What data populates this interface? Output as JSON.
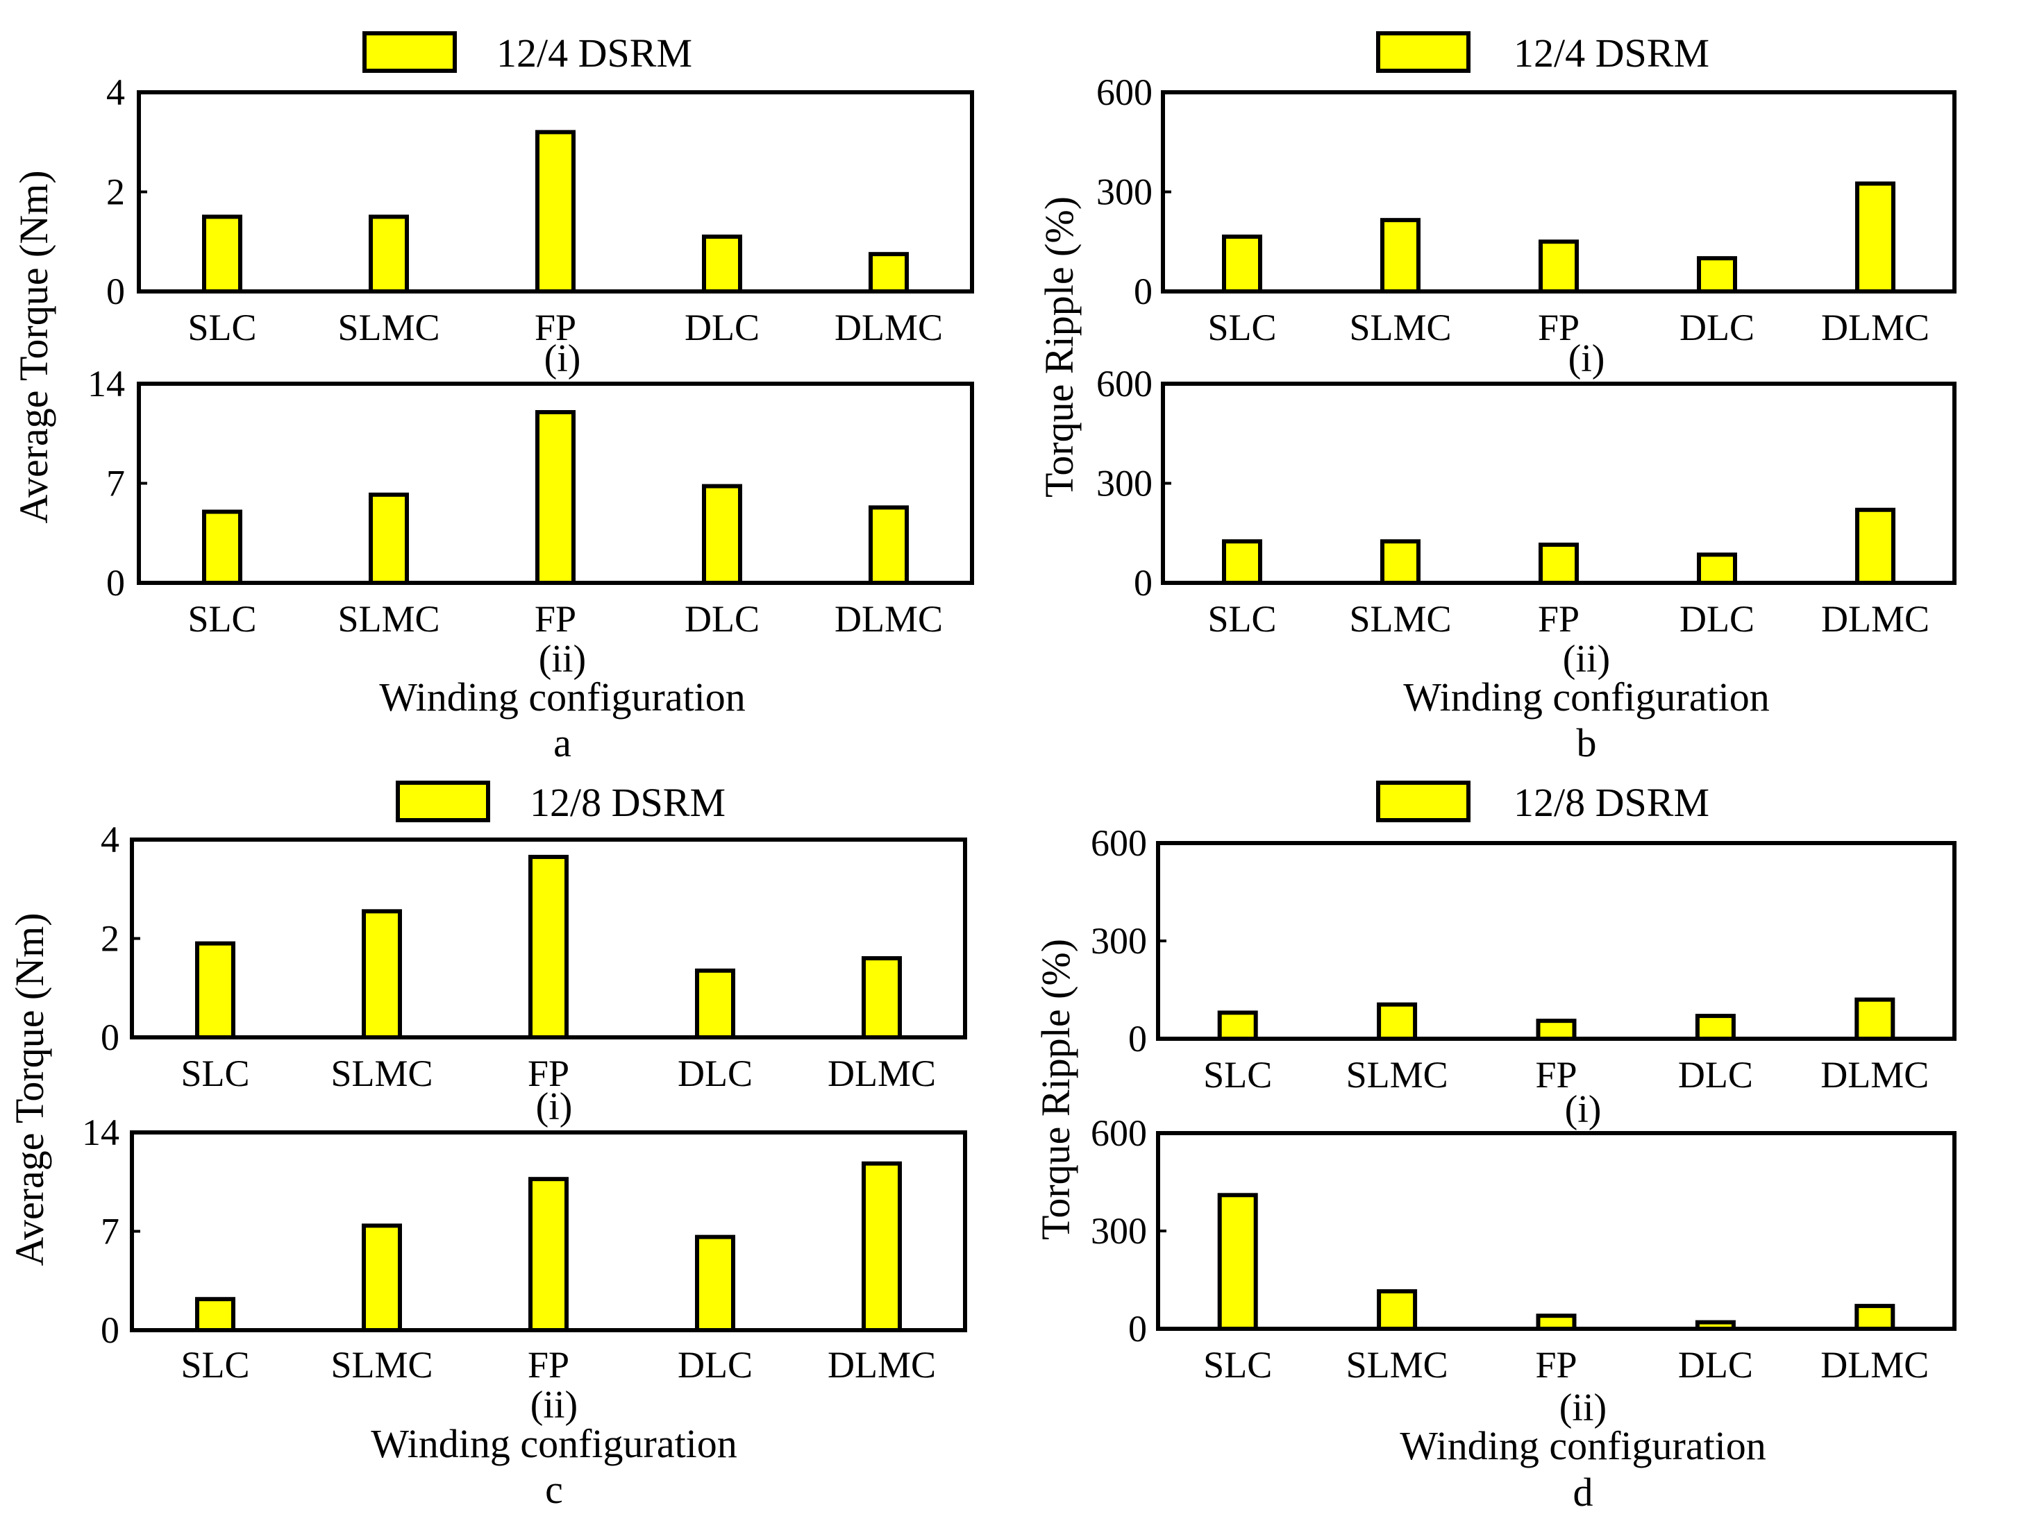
{
  "colors": {
    "bar": "#FFFF00",
    "stroke": "#000000",
    "background": "#FFFFFF"
  },
  "categories": [
    "SLC",
    "SLMC",
    "FP",
    "DLC",
    "DLMC"
  ],
  "chart_data": [
    {
      "type": "bar",
      "panel": "a",
      "panel_label": "a",
      "legend": "12/4 DSRM",
      "ylabel": "Average Torque (Nm)",
      "xlabel": "Winding configuration",
      "subplots": [
        {
          "label": "(i)",
          "ylim": [
            0,
            4
          ],
          "yticks": [
            "0",
            "2",
            "4"
          ],
          "yticks_values": [
            0,
            2,
            4
          ],
          "values": [
            1.5,
            1.5,
            3.2,
            1.1,
            0.75
          ]
        },
        {
          "label": "(ii)",
          "ylim": [
            0,
            14
          ],
          "yticks": [
            "0",
            "7",
            "14"
          ],
          "yticks_values": [
            0,
            7,
            14
          ],
          "values": [
            5,
            6.2,
            12,
            6.8,
            5.3
          ]
        }
      ]
    },
    {
      "type": "bar",
      "panel": "b",
      "panel_label": "b",
      "legend": "12/4 DSRM",
      "ylabel": "Torque Ripple (%)",
      "xlabel": "Winding configuration",
      "subplots": [
        {
          "label": "(i)",
          "ylim": [
            0,
            600
          ],
          "yticks": [
            "0",
            "300",
            "600"
          ],
          "yticks_values": [
            0,
            300,
            600
          ],
          "values": [
            165,
            215,
            150,
            100,
            325
          ]
        },
        {
          "label": "(ii)",
          "ylim": [
            0,
            600
          ],
          "yticks": [
            "0",
            "300",
            "600"
          ],
          "yticks_values": [
            0,
            300,
            600
          ],
          "values": [
            125,
            125,
            115,
            85,
            220
          ]
        }
      ]
    },
    {
      "type": "bar",
      "panel": "c",
      "panel_label": "c",
      "legend": "12/8 DSRM",
      "ylabel": "Average Torque (Nm)",
      "xlabel": "Winding configuration",
      "subplots": [
        {
          "label": "(i)",
          "ylim": [
            0,
            4
          ],
          "yticks": [
            "0",
            "2",
            "4"
          ],
          "yticks_values": [
            0,
            2,
            4
          ],
          "values": [
            1.9,
            2.55,
            3.65,
            1.35,
            1.6
          ]
        },
        {
          "label": "(ii)",
          "ylim": [
            0,
            14
          ],
          "yticks": [
            "0",
            "7",
            "14"
          ],
          "yticks_values": [
            0,
            7,
            14
          ],
          "values": [
            2.2,
            7.4,
            10.7,
            6.6,
            11.8
          ]
        }
      ]
    },
    {
      "type": "bar",
      "panel": "d",
      "panel_label": "d",
      "legend": "12/8 DSRM",
      "ylabel": "Torque Ripple (%)",
      "xlabel": "Winding configuration",
      "subplots": [
        {
          "label": "(i)",
          "ylim": [
            0,
            600
          ],
          "yticks": [
            "0",
            "300",
            "600"
          ],
          "yticks_values": [
            0,
            300,
            600
          ],
          "values": [
            80,
            105,
            55,
            70,
            120
          ]
        },
        {
          "label": "(ii)",
          "ylim": [
            0,
            600
          ],
          "yticks": [
            "0",
            "300",
            "600"
          ],
          "yticks_values": [
            0,
            300,
            600
          ],
          "values": [
            410,
            115,
            40,
            20,
            70
          ]
        }
      ]
    }
  ]
}
